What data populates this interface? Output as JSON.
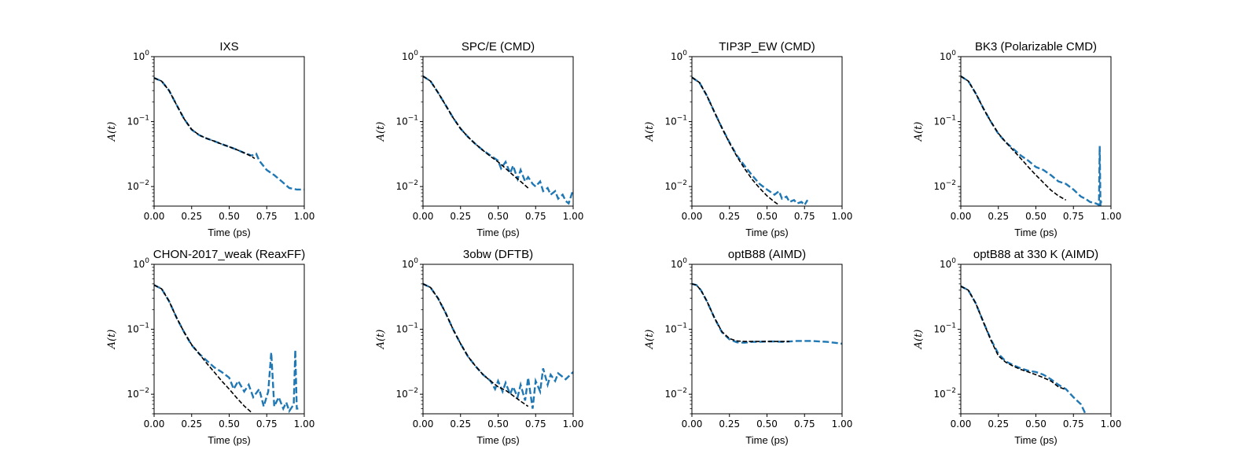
{
  "colors": {
    "data": "#1f77b4",
    "fit": "#000000"
  },
  "chart_data": [
    {
      "type": "line",
      "title": "IXS",
      "xlabel": "Time (ps)",
      "ylabel": "A(t)",
      "xlim": [
        0,
        1
      ],
      "ylim": [
        0.005,
        1
      ],
      "yscale": "log",
      "xticks": [
        "0.00",
        "0.25",
        "0.50",
        "0.75",
        "1.00"
      ],
      "yticks": [
        "10^-2",
        "10^-1",
        "10^0"
      ],
      "legend": "none",
      "grid": false,
      "series": [
        {
          "style": "dashed",
          "color": "#1f77b4",
          "x": [
            0,
            0.05,
            0.1,
            0.15,
            0.2,
            0.25,
            0.3,
            0.35,
            0.4,
            0.45,
            0.5,
            0.55,
            0.6,
            0.65,
            0.68,
            0.7,
            0.75,
            0.8,
            0.85,
            0.9,
            0.95,
            1.0
          ],
          "y": [
            0.47,
            0.42,
            0.3,
            0.18,
            0.11,
            0.075,
            0.062,
            0.055,
            0.05,
            0.045,
            0.041,
            0.037,
            0.033,
            0.03,
            0.032,
            0.025,
            0.018,
            0.015,
            0.012,
            0.0095,
            0.009,
            0.009
          ]
        },
        {
          "style": "dashed",
          "color": "#000000",
          "x": [
            0,
            0.05,
            0.1,
            0.15,
            0.2,
            0.25,
            0.3,
            0.35,
            0.4,
            0.45,
            0.5,
            0.55,
            0.6,
            0.65,
            0.67
          ],
          "y": [
            0.47,
            0.42,
            0.3,
            0.18,
            0.11,
            0.076,
            0.062,
            0.055,
            0.05,
            0.045,
            0.041,
            0.037,
            0.033,
            0.029,
            0.027
          ]
        }
      ]
    },
    {
      "type": "line",
      "title": "SPC/E (CMD)",
      "xlabel": "Time (ps)",
      "ylabel": "A(t)",
      "xlim": [
        0,
        1
      ],
      "ylim": [
        0.005,
        1
      ],
      "yscale": "log",
      "xticks": [
        "0.00",
        "0.25",
        "0.50",
        "0.75",
        "1.00"
      ],
      "yticks": [
        "10^-2",
        "10^-1",
        "10^0"
      ],
      "legend": "none",
      "grid": false,
      "series": [
        {
          "style": "dashed",
          "color": "#1f77b4",
          "x": [
            0,
            0.05,
            0.1,
            0.15,
            0.2,
            0.25,
            0.3,
            0.35,
            0.4,
            0.45,
            0.5,
            0.52,
            0.55,
            0.58,
            0.6,
            0.63,
            0.65,
            0.68,
            0.7,
            0.73,
            0.75,
            0.78,
            0.8,
            0.83,
            0.85,
            0.88,
            0.9,
            0.93,
            0.95,
            0.97,
            1.0
          ],
          "y": [
            0.5,
            0.42,
            0.28,
            0.18,
            0.115,
            0.078,
            0.058,
            0.045,
            0.036,
            0.03,
            0.025,
            0.019,
            0.024,
            0.016,
            0.021,
            0.013,
            0.018,
            0.012,
            0.014,
            0.011,
            0.01,
            0.012,
            0.0085,
            0.0095,
            0.0075,
            0.0085,
            0.0065,
            0.0075,
            0.006,
            0.0055,
            0.009
          ]
        },
        {
          "style": "dashed",
          "color": "#000000",
          "x": [
            0,
            0.05,
            0.1,
            0.15,
            0.2,
            0.25,
            0.3,
            0.35,
            0.4,
            0.45,
            0.5,
            0.55,
            0.6,
            0.65,
            0.7
          ],
          "y": [
            0.5,
            0.42,
            0.28,
            0.18,
            0.115,
            0.078,
            0.058,
            0.045,
            0.036,
            0.029,
            0.024,
            0.019,
            0.015,
            0.012,
            0.0095
          ]
        }
      ]
    },
    {
      "type": "line",
      "title": "TIP3P_EW (CMD)",
      "xlabel": "Time (ps)",
      "ylabel": "A(t)",
      "xlim": [
        0,
        1
      ],
      "ylim": [
        0.005,
        1
      ],
      "yscale": "log",
      "xticks": [
        "0.00",
        "0.25",
        "0.50",
        "0.75",
        "1.00"
      ],
      "yticks": [
        "10^-2",
        "10^-1",
        "10^0"
      ],
      "legend": "none",
      "grid": false,
      "series": [
        {
          "style": "dashed",
          "color": "#1f77b4",
          "x": [
            0,
            0.05,
            0.1,
            0.15,
            0.2,
            0.25,
            0.3,
            0.35,
            0.4,
            0.45,
            0.5,
            0.55,
            0.58,
            0.6,
            0.63,
            0.65,
            0.68,
            0.7,
            0.73,
            0.75,
            0.77
          ],
          "y": [
            0.48,
            0.4,
            0.25,
            0.14,
            0.08,
            0.048,
            0.03,
            0.021,
            0.015,
            0.011,
            0.009,
            0.0075,
            0.0085,
            0.0065,
            0.007,
            0.0058,
            0.0062,
            0.0055,
            0.0058,
            0.0052,
            0.0062
          ]
        },
        {
          "style": "dashed",
          "color": "#000000",
          "x": [
            0,
            0.05,
            0.1,
            0.15,
            0.2,
            0.25,
            0.3,
            0.35,
            0.4,
            0.45,
            0.5,
            0.55,
            0.58
          ],
          "y": [
            0.48,
            0.4,
            0.25,
            0.14,
            0.08,
            0.047,
            0.029,
            0.019,
            0.013,
            0.0095,
            0.0072,
            0.0058,
            0.0052
          ]
        }
      ]
    },
    {
      "type": "line",
      "title": "BK3 (Polarizable CMD)",
      "xlabel": "Time (ps)",
      "ylabel": "A(t)",
      "xlim": [
        0,
        1
      ],
      "ylim": [
        0.005,
        1
      ],
      "yscale": "log",
      "xticks": [
        "0.00",
        "0.25",
        "0.50",
        "0.75",
        "1.00"
      ],
      "yticks": [
        "10^-2",
        "10^-1",
        "10^0"
      ],
      "legend": "none",
      "grid": false,
      "series": [
        {
          "style": "dashed",
          "color": "#1f77b4",
          "x": [
            0,
            0.05,
            0.1,
            0.15,
            0.2,
            0.25,
            0.3,
            0.35,
            0.4,
            0.45,
            0.5,
            0.55,
            0.6,
            0.65,
            0.7,
            0.75,
            0.8,
            0.83,
            0.86,
            0.9,
            0.92,
            0.925,
            0.93,
            0.935
          ],
          "y": [
            0.5,
            0.42,
            0.27,
            0.16,
            0.1,
            0.065,
            0.048,
            0.038,
            0.03,
            0.025,
            0.02,
            0.018,
            0.015,
            0.012,
            0.011,
            0.009,
            0.007,
            0.0065,
            0.0058,
            0.0055,
            0.0052,
            0.042,
            0.005,
            0.006
          ]
        },
        {
          "style": "dashed",
          "color": "#000000",
          "x": [
            0,
            0.05,
            0.1,
            0.15,
            0.2,
            0.25,
            0.3,
            0.35,
            0.4,
            0.45,
            0.5,
            0.55,
            0.6,
            0.65,
            0.7
          ],
          "y": [
            0.5,
            0.42,
            0.27,
            0.16,
            0.1,
            0.066,
            0.048,
            0.036,
            0.027,
            0.02,
            0.015,
            0.0115,
            0.0088,
            0.0072,
            0.0062
          ]
        }
      ]
    },
    {
      "type": "line",
      "title": "CHON-2017_weak (ReaxFF)",
      "xlabel": "Time (ps)",
      "ylabel": "A(t)",
      "xlim": [
        0,
        1
      ],
      "ylim": [
        0.005,
        1
      ],
      "yscale": "log",
      "xticks": [
        "0.00",
        "0.25",
        "0.50",
        "0.75",
        "1.00"
      ],
      "yticks": [
        "10^-2",
        "10^-1",
        "10^0"
      ],
      "legend": "none",
      "grid": false,
      "series": [
        {
          "style": "dashed",
          "color": "#1f77b4",
          "x": [
            0,
            0.05,
            0.1,
            0.15,
            0.2,
            0.25,
            0.3,
            0.35,
            0.4,
            0.45,
            0.5,
            0.53,
            0.56,
            0.6,
            0.63,
            0.66,
            0.7,
            0.73,
            0.76,
            0.78,
            0.8,
            0.83,
            0.86,
            0.88,
            0.9,
            0.93,
            0.94,
            0.95,
            0.96
          ],
          "y": [
            0.48,
            0.42,
            0.27,
            0.15,
            0.09,
            0.057,
            0.042,
            0.033,
            0.026,
            0.022,
            0.018,
            0.012,
            0.016,
            0.011,
            0.014,
            0.009,
            0.012,
            0.0065,
            0.011,
            0.044,
            0.0065,
            0.009,
            0.006,
            0.0075,
            0.0055,
            0.007,
            0.048,
            0.006,
            0.006
          ]
        },
        {
          "style": "dashed",
          "color": "#000000",
          "x": [
            0,
            0.05,
            0.1,
            0.15,
            0.2,
            0.25,
            0.3,
            0.35,
            0.4,
            0.45,
            0.5,
            0.55,
            0.6,
            0.65
          ],
          "y": [
            0.48,
            0.42,
            0.27,
            0.15,
            0.09,
            0.058,
            0.042,
            0.03,
            0.022,
            0.016,
            0.012,
            0.0088,
            0.0066,
            0.0052
          ]
        }
      ]
    },
    {
      "type": "line",
      "title": "3obw (DFTB)",
      "xlabel": "Time (ps)",
      "ylabel": "A(t)",
      "xlim": [
        0,
        1
      ],
      "ylim": [
        0.005,
        1
      ],
      "yscale": "log",
      "xticks": [
        "0.00",
        "0.25",
        "0.50",
        "0.75",
        "1.00"
      ],
      "yticks": [
        "10^-2",
        "10^-1",
        "10^0"
      ],
      "legend": "none",
      "grid": false,
      "series": [
        {
          "style": "dashed",
          "color": "#1f77b4",
          "x": [
            0,
            0.05,
            0.1,
            0.15,
            0.2,
            0.25,
            0.3,
            0.35,
            0.4,
            0.45,
            0.48,
            0.5,
            0.53,
            0.55,
            0.58,
            0.6,
            0.63,
            0.65,
            0.68,
            0.7,
            0.73,
            0.75,
            0.78,
            0.8,
            0.83,
            0.85,
            0.88,
            0.9,
            0.95,
            1.0
          ],
          "y": [
            0.5,
            0.44,
            0.3,
            0.18,
            0.1,
            0.06,
            0.038,
            0.027,
            0.02,
            0.016,
            0.012,
            0.016,
            0.011,
            0.015,
            0.01,
            0.013,
            0.009,
            0.014,
            0.008,
            0.018,
            0.006,
            0.016,
            0.011,
            0.025,
            0.014,
            0.02,
            0.016,
            0.021,
            0.017,
            0.022
          ]
        },
        {
          "style": "dashed",
          "color": "#000000",
          "x": [
            0,
            0.05,
            0.1,
            0.15,
            0.2,
            0.25,
            0.3,
            0.35,
            0.4,
            0.45,
            0.5,
            0.55,
            0.6,
            0.65,
            0.7
          ],
          "y": [
            0.5,
            0.44,
            0.3,
            0.18,
            0.1,
            0.06,
            0.038,
            0.027,
            0.02,
            0.016,
            0.013,
            0.0115,
            0.0095,
            0.0078,
            0.0065
          ]
        }
      ]
    },
    {
      "type": "line",
      "title": "optB88 (AIMD)",
      "xlabel": "Time (ps)",
      "ylabel": "A(t)",
      "xlim": [
        0,
        1
      ],
      "ylim": [
        0.005,
        1
      ],
      "yscale": "log",
      "xticks": [
        "0.00",
        "0.25",
        "0.50",
        "0.75",
        "1.00"
      ],
      "yticks": [
        "10^-2",
        "10^-1",
        "10^0"
      ],
      "legend": "none",
      "grid": false,
      "series": [
        {
          "style": "dashed",
          "color": "#1f77b4",
          "x": [
            0,
            0.03,
            0.06,
            0.1,
            0.15,
            0.2,
            0.25,
            0.3,
            0.35,
            0.4,
            0.45,
            0.5,
            0.55,
            0.6,
            0.65,
            0.7,
            0.75,
            0.8,
            0.85,
            0.9,
            0.95,
            1.0
          ],
          "y": [
            0.5,
            0.48,
            0.4,
            0.27,
            0.15,
            0.09,
            0.07,
            0.063,
            0.062,
            0.064,
            0.064,
            0.065,
            0.065,
            0.064,
            0.065,
            0.066,
            0.066,
            0.066,
            0.065,
            0.064,
            0.062,
            0.06
          ]
        },
        {
          "style": "dashed",
          "color": "#000000",
          "x": [
            0,
            0.03,
            0.06,
            0.1,
            0.15,
            0.2,
            0.25,
            0.3,
            0.35,
            0.4,
            0.45,
            0.5,
            0.55,
            0.6,
            0.65
          ],
          "y": [
            0.5,
            0.48,
            0.4,
            0.27,
            0.15,
            0.092,
            0.072,
            0.066,
            0.065,
            0.065,
            0.065,
            0.065,
            0.065,
            0.065,
            0.065
          ]
        }
      ]
    },
    {
      "type": "line",
      "title": "optB88 at 330 K (AIMD)",
      "xlabel": "Time (ps)",
      "ylabel": "A(t)",
      "xlim": [
        0,
        1
      ],
      "ylim": [
        0.005,
        1
      ],
      "yscale": "log",
      "xticks": [
        "0.00",
        "0.25",
        "0.50",
        "0.75",
        "1.00"
      ],
      "yticks": [
        "10^-2",
        "10^-1",
        "10^0"
      ],
      "legend": "none",
      "grid": false,
      "series": [
        {
          "style": "dashed",
          "color": "#1f77b4",
          "x": [
            0,
            0.05,
            0.1,
            0.15,
            0.2,
            0.25,
            0.3,
            0.35,
            0.4,
            0.45,
            0.5,
            0.55,
            0.6,
            0.65,
            0.7,
            0.75,
            0.8,
            0.83
          ],
          "y": [
            0.46,
            0.4,
            0.25,
            0.13,
            0.07,
            0.042,
            0.032,
            0.028,
            0.025,
            0.023,
            0.022,
            0.02,
            0.017,
            0.014,
            0.012,
            0.009,
            0.007,
            0.005
          ]
        },
        {
          "style": "dashed",
          "color": "#000000",
          "x": [
            0,
            0.05,
            0.1,
            0.15,
            0.2,
            0.25,
            0.3,
            0.35,
            0.4,
            0.45,
            0.5,
            0.55,
            0.6,
            0.65,
            0.69
          ],
          "y": [
            0.46,
            0.4,
            0.25,
            0.13,
            0.068,
            0.039,
            0.031,
            0.027,
            0.024,
            0.022,
            0.02,
            0.018,
            0.016,
            0.013,
            0.012
          ]
        }
      ]
    }
  ]
}
